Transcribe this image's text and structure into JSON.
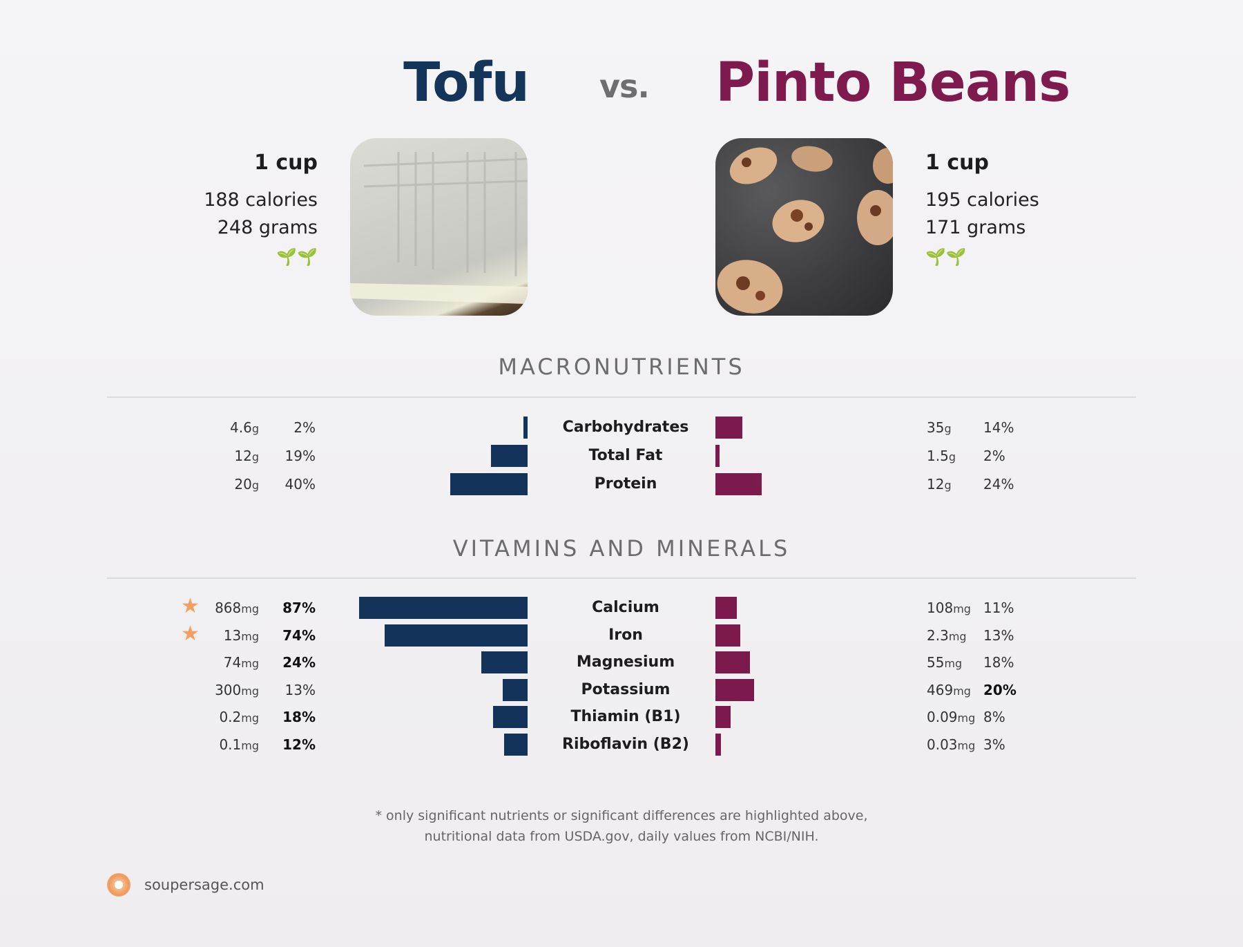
{
  "header": {
    "left_title": "Tofu",
    "vs": "vs.",
    "right_title": "Pinto Beans"
  },
  "left_food": {
    "serving": "1 cup",
    "calories": "188 calories",
    "weight": "248 grams",
    "badge": "🌱🌱"
  },
  "right_food": {
    "serving": "1 cup",
    "calories": "195 calories",
    "weight": "171 grams",
    "badge": "🌱🌱"
  },
  "colors": {
    "left": "#14335a",
    "right": "#7d1a4d",
    "star": "#f4a064",
    "sprout": "#2a8a22"
  },
  "sections": {
    "macros_title": "MACRONUTRIENTS",
    "vitamins_title": "VITAMINS AND MINERALS"
  },
  "chart_data": [
    {
      "type": "bar",
      "title": "MACRONUTRIENTS",
      "categories": [
        "Carbohydrates",
        "Total Fat",
        "Protein"
      ],
      "series": [
        {
          "name": "Tofu",
          "amounts": [
            "4.6",
            "12",
            "20"
          ],
          "units": [
            "g",
            "g",
            "g"
          ],
          "values": [
            2,
            19,
            40
          ],
          "labels": [
            "2%",
            "19%",
            "40%"
          ],
          "bold": [
            false,
            false,
            false
          ],
          "star": [
            false,
            false,
            false
          ]
        },
        {
          "name": "Pinto Beans",
          "amounts": [
            "35",
            "1.5",
            "12"
          ],
          "units": [
            "g",
            "g",
            "g"
          ],
          "values": [
            14,
            2,
            24
          ],
          "labels": [
            "14%",
            "2%",
            "24%"
          ],
          "bold": [
            false,
            false,
            false
          ]
        }
      ]
    },
    {
      "type": "bar",
      "title": "VITAMINS AND MINERALS",
      "categories": [
        "Calcium",
        "Iron",
        "Magnesium",
        "Potassium",
        "Thiamin (B1)",
        "Riboflavin (B2)"
      ],
      "series": [
        {
          "name": "Tofu",
          "amounts": [
            "868",
            "13",
            "74",
            "300",
            "0.2",
            "0.1"
          ],
          "units": [
            "mg",
            "mg",
            "mg",
            "mg",
            "mg",
            "mg"
          ],
          "values": [
            87,
            74,
            24,
            13,
            18,
            12
          ],
          "labels": [
            "87%",
            "74%",
            "24%",
            "13%",
            "18%",
            "12%"
          ],
          "bold": [
            true,
            true,
            true,
            false,
            true,
            true
          ],
          "star": [
            true,
            true,
            false,
            false,
            false,
            false
          ]
        },
        {
          "name": "Pinto Beans",
          "amounts": [
            "108",
            "2.3",
            "55",
            "469",
            "0.09",
            "0.03"
          ],
          "units": [
            "mg",
            "mg",
            "mg",
            "mg",
            "mg",
            "mg"
          ],
          "values": [
            11,
            13,
            18,
            20,
            8,
            3
          ],
          "labels": [
            "11%",
            "13%",
            "18%",
            "20%",
            "8%",
            "3%"
          ],
          "bold": [
            false,
            false,
            false,
            true,
            false,
            false
          ]
        }
      ]
    }
  ],
  "footer": {
    "note_line1": "* only significant nutrients or significant differences are highlighted above,",
    "note_line2": "nutritional data from USDA.gov, daily values from NCBI/NIH.",
    "site": "soupersage.com"
  }
}
